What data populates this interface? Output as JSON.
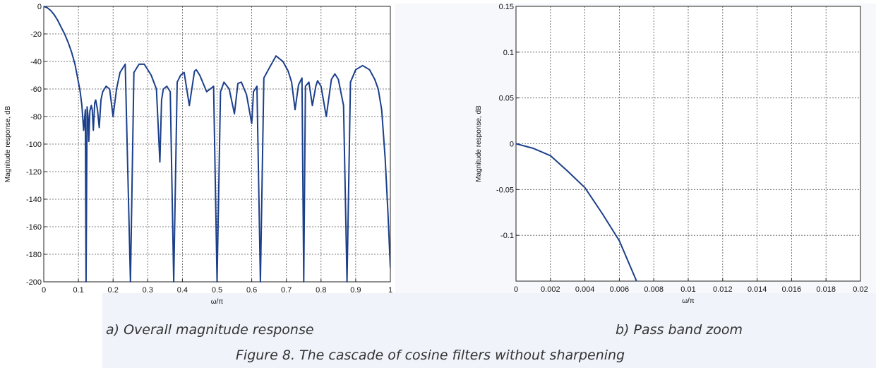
{
  "figure": {
    "caption": "Figure 8. The cascade of cosine filters without sharpening"
  },
  "colors": {
    "line": "#1b3f8a",
    "grid": "#555555",
    "axis": "#222222"
  },
  "chart_data": [
    {
      "type": "line",
      "title": "",
      "caption": "a) Overall magnitude response",
      "xlabel": "ω/π",
      "ylabel": "Magnitude response, dB",
      "xlim": [
        0,
        1
      ],
      "ylim": [
        -200,
        0
      ],
      "xticks": [
        "0",
        "0.1",
        "0.2",
        "0.3",
        "0.4",
        "0.5",
        "0.6",
        "0.7",
        "0.8",
        "0.9",
        "1"
      ],
      "yticks": [
        "0",
        "-20",
        "-40",
        "-60",
        "-80",
        "-100",
        "-120",
        "-140",
        "-160",
        "-180",
        "-200"
      ],
      "grid": true,
      "series": [
        {
          "x": [
            0,
            0.01,
            0.02,
            0.03,
            0.04,
            0.05,
            0.06,
            0.07,
            0.08,
            0.09,
            0.1,
            0.105,
            0.11,
            0.115,
            0.12,
            0.122,
            0.125,
            0.128,
            0.13,
            0.133,
            0.137,
            0.14,
            0.143,
            0.147,
            0.15,
            0.155,
            0.16,
            0.165,
            0.17,
            0.175,
            0.18,
            0.19,
            0.2,
            0.21,
            0.22,
            0.235,
            0.25,
            0.26,
            0.275,
            0.29,
            0.31,
            0.325,
            0.335,
            0.34,
            0.345,
            0.355,
            0.365,
            0.375,
            0.385,
            0.395,
            0.405,
            0.42,
            0.435,
            0.44,
            0.45,
            0.47,
            0.49,
            0.5,
            0.51,
            0.52,
            0.535,
            0.55,
            0.56,
            0.57,
            0.585,
            0.6,
            0.605,
            0.615,
            0.625,
            0.635,
            0.65,
            0.67,
            0.69,
            0.705,
            0.715,
            0.725,
            0.735,
            0.745,
            0.75,
            0.755,
            0.765,
            0.775,
            0.785,
            0.79,
            0.8,
            0.815,
            0.83,
            0.84,
            0.85,
            0.865,
            0.875,
            0.885,
            0.9,
            0.92,
            0.94,
            0.955,
            0.965,
            0.975,
            0.985,
            0.993,
            1.0
          ],
          "y": [
            0,
            -1,
            -3,
            -6,
            -10,
            -15,
            -20,
            -26,
            -33,
            -42,
            -55,
            -62,
            -72,
            -90,
            -75,
            -200,
            -73,
            -80,
            -98,
            -76,
            -72,
            -75,
            -90,
            -70,
            -68,
            -75,
            -88,
            -68,
            -62,
            -60,
            -58,
            -60,
            -80,
            -60,
            -48,
            -42,
            -200,
            -48,
            -42,
            -42,
            -50,
            -60,
            -113,
            -68,
            -60,
            -58,
            -62,
            -200,
            -55,
            -50,
            -48,
            -72,
            -47,
            -46,
            -50,
            -62,
            -58,
            -200,
            -62,
            -55,
            -60,
            -78,
            -56,
            -55,
            -64,
            -85,
            -62,
            -58,
            -200,
            -52,
            -45,
            -36,
            -40,
            -47,
            -55,
            -75,
            -57,
            -52,
            -200,
            -58,
            -55,
            -72,
            -58,
            -54,
            -58,
            -80,
            -53,
            -49,
            -53,
            -72,
            -200,
            -55,
            -46,
            -43,
            -46,
            -53,
            -60,
            -75,
            -110,
            -150,
            -190
          ]
        }
      ]
    },
    {
      "type": "line",
      "title": "",
      "caption": "b) Pass band zoom",
      "xlabel": "ω/π",
      "ylabel": "Magnitude response, dB",
      "xlim": [
        0,
        0.02
      ],
      "ylim": [
        -0.15,
        0.15
      ],
      "xticks": [
        "0",
        "0.002",
        "0.004",
        "0.006",
        "0.008",
        "0.01",
        "0.012",
        "0.014",
        "0.016",
        "0.018",
        "0.02"
      ],
      "yticks": [
        "0.15",
        "0.1",
        "0.05",
        "0",
        "-0.05",
        "-0.1"
      ],
      "grid": true,
      "series": [
        {
          "x": [
            0,
            0.001,
            0.002,
            0.003,
            0.004,
            0.005,
            0.006,
            0.0065,
            0.007
          ],
          "y": [
            0,
            -0.005,
            -0.013,
            -0.03,
            -0.048,
            -0.076,
            -0.106,
            -0.128,
            -0.15
          ]
        }
      ]
    }
  ]
}
